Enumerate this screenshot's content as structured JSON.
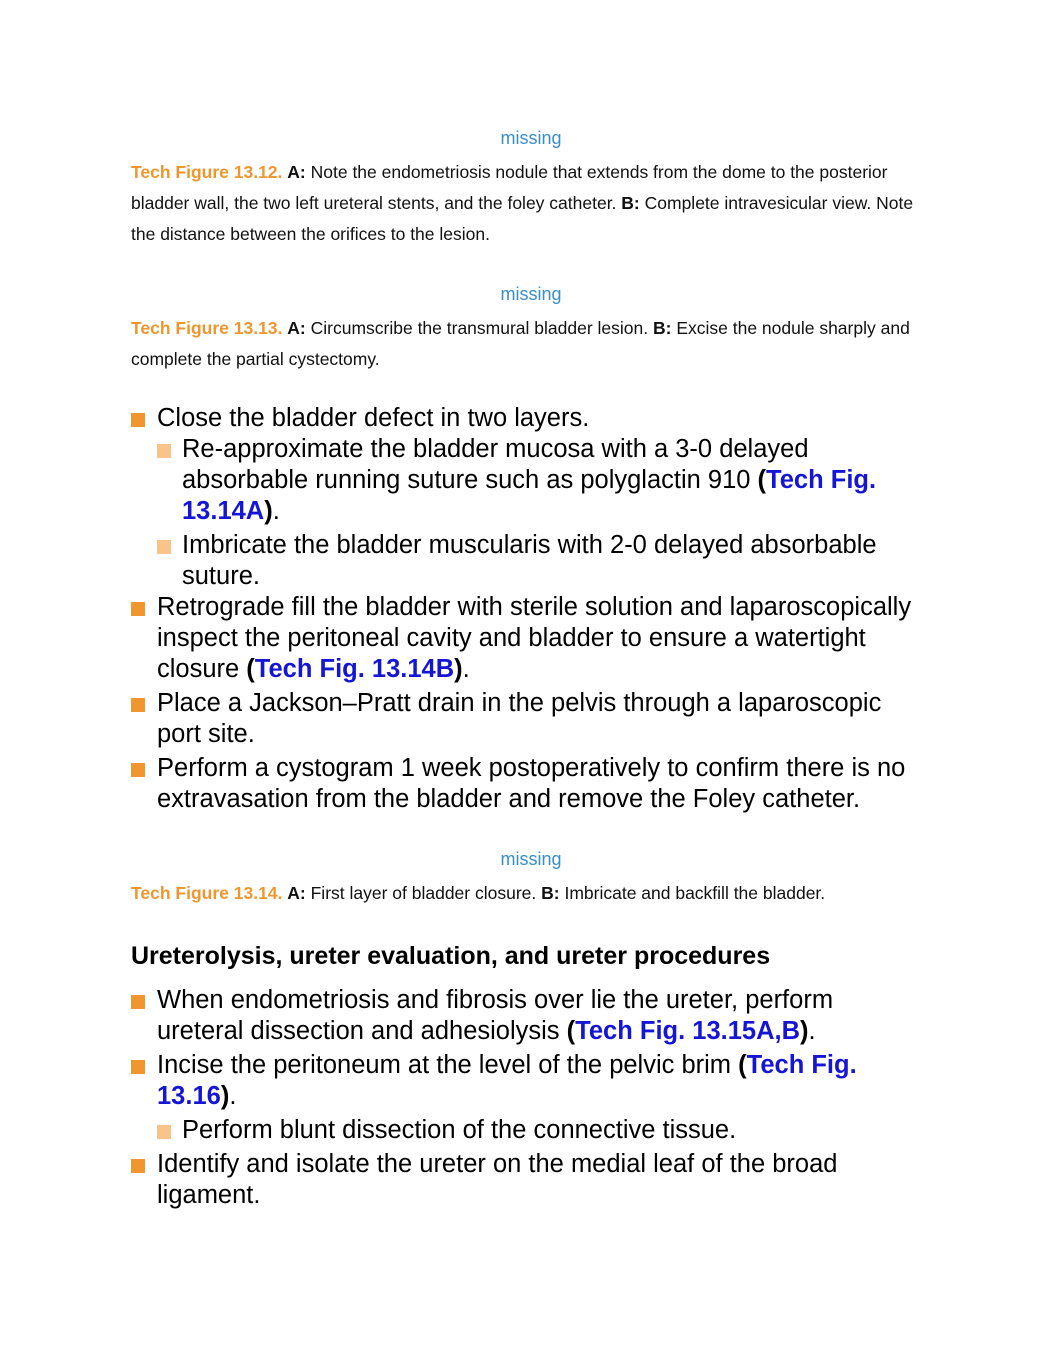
{
  "fig12": {
    "missing": "missing",
    "fig_label": "Tech Figure 13.12.",
    "a_label": "A:",
    "a_text": " Note the endometriosis nodule that extends from the dome to the posterior bladder wall, the two left ureteral stents, and the foley catheter. ",
    "b_label": "B:",
    "b_text": " Complete intravesicular view. Note the distance between the orifices to the lesion."
  },
  "fig13": {
    "missing": "missing",
    "fig_label": "Tech Figure 13.13.",
    "a_label": "A:",
    "a_text": " Circumscribe the transmural bladder lesion. ",
    "b_label": "B:",
    "b_text": " Excise the nodule sharply and complete the partial cystectomy."
  },
  "list1": {
    "i1": "Close the bladder defect in two layers.",
    "i1a_text": "Re-approximate the bladder mucosa with a 3-0 delayed absorbable running suture such as polyglactin 910 ",
    "i1a_link": "Tech Fig. 13.14A",
    "i1b": "Imbricate the bladder muscularis with 2-0 delayed absorbable suture.",
    "i2_text": "Retrograde fill the bladder with sterile solution and laparoscopically inspect the peritoneal cavity and bladder to ensure a watertight closure ",
    "i2_link": "Tech Fig. 13.14B",
    "i3": "Place a Jackson–Pratt drain in the pelvis through a laparoscopic port site.",
    "i4": "Perform a cystogram 1 week postoperatively to confirm there is no extravasation from the bladder and remove the Foley catheter."
  },
  "fig14": {
    "missing": "missing",
    "fig_label": "Tech Figure 13.14.",
    "a_label": "A:",
    "a_text": " First layer of bladder closure. ",
    "b_label": "B:",
    "b_text": " Imbricate and backfill the bladder."
  },
  "section": {
    "heading": "Ureterolysis, ureter evaluation, and ureter procedures"
  },
  "list2": {
    "i1_text": "When endometriosis and fibrosis over lie the ureter, perform ureteral dissection and adhesiolysis ",
    "i1_link": "Tech Fig. 13.15A,B",
    "i2_text": "Incise the peritoneum at the level of the pelvic brim ",
    "i2_link": "Tech Fig. 13.16",
    "i2a": "Perform blunt dissection of the connective tissue.",
    "i3": "Identify and isolate the ureter on the medial leaf of the broad ligament."
  },
  "punct": {
    "open": "(",
    "close": ")",
    "period": "."
  },
  "colors": {
    "accent": "#f0962e",
    "accent_light": "#f9c48c",
    "link": "#1515d6",
    "missing": "#3a8ec9"
  }
}
